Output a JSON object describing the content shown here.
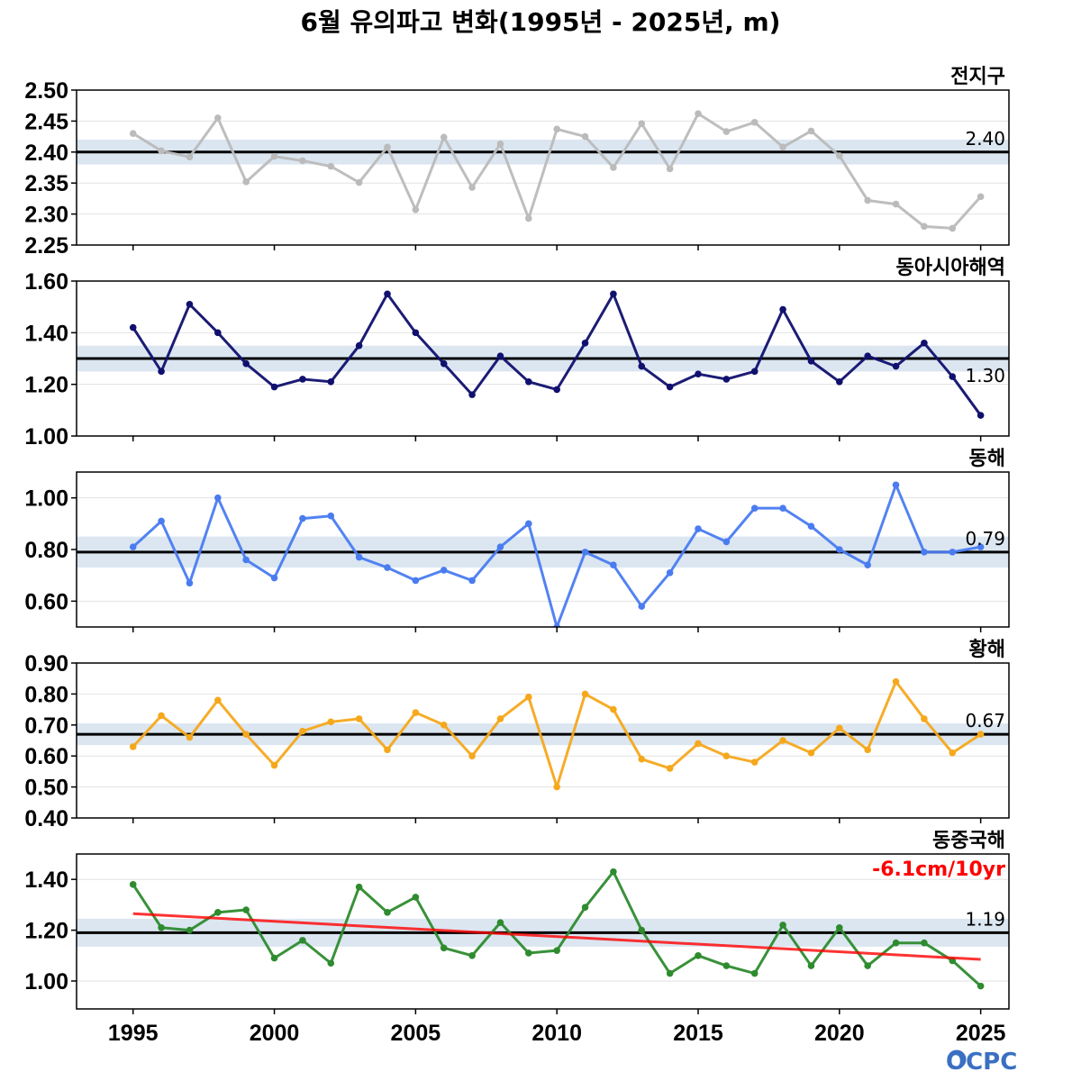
{
  "title": "6월 유의파고 변화(1995년 - 2025년, m)",
  "logo_text": "OCPC",
  "chart_data": [
    {
      "type": "line",
      "panel": "전지구",
      "color": "#bbbbbb",
      "mean_value": 2.4,
      "mean_label": "2.40",
      "band": 0.02,
      "ylim": [
        2.25,
        2.5
      ],
      "yticks": [
        2.25,
        2.3,
        2.35,
        2.4,
        2.45,
        2.5
      ],
      "ytick_labels": [
        "2.25",
        "2.30",
        "2.35",
        "2.40",
        "2.45",
        "2.50"
      ],
      "x": [
        1995,
        1996,
        1997,
        1998,
        1999,
        2000,
        2001,
        2002,
        2003,
        2004,
        2005,
        2006,
        2007,
        2008,
        2009,
        2010,
        2011,
        2012,
        2013,
        2014,
        2015,
        2016,
        2017,
        2018,
        2019,
        2020,
        2021,
        2022,
        2023,
        2024,
        2025
      ],
      "values": [
        2.43,
        2.402,
        2.392,
        2.455,
        2.352,
        2.393,
        2.386,
        2.377,
        2.351,
        2.408,
        2.307,
        2.424,
        2.343,
        2.413,
        2.293,
        2.437,
        2.425,
        2.375,
        2.446,
        2.373,
        2.462,
        2.433,
        2.448,
        2.408,
        2.434,
        2.394,
        2.322,
        2.316,
        2.28,
        2.277,
        2.328
      ]
    },
    {
      "type": "line",
      "panel": "동아시아해역",
      "color": "#10106e",
      "mean_value": 1.3,
      "mean_label": "1.30",
      "band": 0.05,
      "ylim": [
        1.0,
        1.6
      ],
      "yticks": [
        1.0,
        1.2,
        1.4,
        1.6
      ],
      "ytick_labels": [
        "1.00",
        "1.20",
        "1.40",
        "1.60"
      ],
      "x": [
        1995,
        1996,
        1997,
        1998,
        1999,
        2000,
        2001,
        2002,
        2003,
        2004,
        2005,
        2006,
        2007,
        2008,
        2009,
        2010,
        2011,
        2012,
        2013,
        2014,
        2015,
        2016,
        2017,
        2018,
        2019,
        2020,
        2021,
        2022,
        2023,
        2024,
        2025
      ],
      "values": [
        1.42,
        1.25,
        1.51,
        1.4,
        1.28,
        1.19,
        1.22,
        1.21,
        1.35,
        1.55,
        1.4,
        1.28,
        1.16,
        1.31,
        1.21,
        1.18,
        1.36,
        1.55,
        1.27,
        1.19,
        1.24,
        1.22,
        1.25,
        1.49,
        1.29,
        1.21,
        1.31,
        1.27,
        1.36,
        1.23,
        1.08
      ]
    },
    {
      "type": "line",
      "panel": "동해",
      "color": "#4a7cf0",
      "mean_value": 0.79,
      "mean_label": "0.79",
      "band": 0.06,
      "ylim": [
        0.5,
        1.1
      ],
      "yticks": [
        0.6,
        0.8,
        1.0
      ],
      "ytick_labels": [
        "0.60",
        "0.80",
        "1.00"
      ],
      "x": [
        1995,
        1996,
        1997,
        1998,
        1999,
        2000,
        2001,
        2002,
        2003,
        2004,
        2005,
        2006,
        2007,
        2008,
        2009,
        2010,
        2011,
        2012,
        2013,
        2014,
        2015,
        2016,
        2017,
        2018,
        2019,
        2020,
        2021,
        2022,
        2023,
        2024,
        2025
      ],
      "values": [
        0.81,
        0.91,
        0.67,
        1.0,
        0.76,
        0.69,
        0.92,
        0.93,
        0.77,
        0.73,
        0.68,
        0.72,
        0.68,
        0.81,
        0.9,
        0.5,
        0.79,
        0.74,
        0.58,
        0.71,
        0.88,
        0.83,
        0.96,
        0.96,
        0.89,
        0.8,
        0.74,
        1.05,
        0.79,
        0.79,
        0.81
      ]
    },
    {
      "type": "line",
      "panel": "황해",
      "color": "#f5a81c",
      "mean_value": 0.67,
      "mean_label": "0.67",
      "band": 0.035,
      "ylim": [
        0.4,
        0.9
      ],
      "yticks": [
        0.4,
        0.5,
        0.6,
        0.7,
        0.8,
        0.9
      ],
      "ytick_labels": [
        "0.40",
        "0.50",
        "0.60",
        "0.70",
        "0.80",
        "0.90"
      ],
      "x": [
        1995,
        1996,
        1997,
        1998,
        1999,
        2000,
        2001,
        2002,
        2003,
        2004,
        2005,
        2006,
        2007,
        2008,
        2009,
        2010,
        2011,
        2012,
        2013,
        2014,
        2015,
        2016,
        2017,
        2018,
        2019,
        2020,
        2021,
        2022,
        2023,
        2024,
        2025
      ],
      "values": [
        0.63,
        0.73,
        0.66,
        0.78,
        0.67,
        0.57,
        0.68,
        0.71,
        0.72,
        0.62,
        0.74,
        0.7,
        0.6,
        0.72,
        0.79,
        0.5,
        0.8,
        0.75,
        0.59,
        0.56,
        0.64,
        0.6,
        0.58,
        0.65,
        0.61,
        0.69,
        0.62,
        0.84,
        0.72,
        0.61,
        0.67
      ]
    },
    {
      "type": "line",
      "panel": "동중국해",
      "color": "#2e8b2e",
      "mean_value": 1.19,
      "mean_label": "1.19",
      "band": 0.055,
      "ylim": [
        0.89,
        1.5
      ],
      "yticks": [
        1.0,
        1.2,
        1.4
      ],
      "ytick_labels": [
        "1.00",
        "1.20",
        "1.40"
      ],
      "trend_label": "-6.1cm/10yr",
      "trend_color": "#ff0000",
      "trend_endpoints": [
        [
          1995,
          1.265
        ],
        [
          2025,
          1.085
        ]
      ],
      "x": [
        1995,
        1996,
        1997,
        1998,
        1999,
        2000,
        2001,
        2002,
        2003,
        2004,
        2005,
        2006,
        2007,
        2008,
        2009,
        2010,
        2011,
        2012,
        2013,
        2014,
        2015,
        2016,
        2017,
        2018,
        2019,
        2020,
        2021,
        2022,
        2023,
        2024,
        2025
      ],
      "values": [
        1.38,
        1.21,
        1.2,
        1.27,
        1.28,
        1.09,
        1.16,
        1.07,
        1.37,
        1.27,
        1.33,
        1.13,
        1.1,
        1.23,
        1.11,
        1.12,
        1.29,
        1.43,
        1.2,
        1.03,
        1.1,
        1.06,
        1.03,
        1.22,
        1.06,
        1.21,
        1.06,
        1.15,
        1.15,
        1.08,
        0.98
      ]
    }
  ],
  "xaxis": {
    "ticks": [
      1995,
      2000,
      2005,
      2010,
      2015,
      2020,
      2025
    ],
    "tick_labels": [
      "1995",
      "2000",
      "2005",
      "2010",
      "2015",
      "2020",
      "2025"
    ],
    "xlim": [
      1993,
      2026
    ]
  },
  "colors": {
    "mean_line": "#000000",
    "band": "#dbe6f1",
    "grid": "#e2e2e2"
  }
}
